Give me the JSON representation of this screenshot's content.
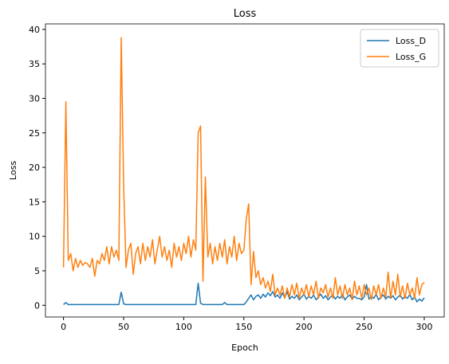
{
  "chart_data": {
    "type": "line",
    "title": "Loss",
    "xlabel": "Epoch",
    "ylabel": "Loss",
    "legend": "upper right",
    "xlim": [
      -15,
      316.6
    ],
    "ylim": [
      -1.7,
      40.8
    ],
    "xticks": [
      0,
      50,
      100,
      150,
      200,
      250,
      300
    ],
    "yticks": [
      0,
      5,
      10,
      15,
      20,
      25,
      30,
      35,
      40
    ],
    "x": [
      0,
      2,
      4,
      6,
      8,
      10,
      12,
      14,
      16,
      18,
      20,
      22,
      24,
      26,
      28,
      30,
      32,
      34,
      36,
      38,
      40,
      42,
      44,
      46,
      48,
      50,
      52,
      54,
      56,
      58,
      60,
      62,
      64,
      66,
      68,
      70,
      72,
      74,
      76,
      78,
      80,
      82,
      84,
      86,
      88,
      90,
      92,
      94,
      96,
      98,
      100,
      102,
      104,
      106,
      108,
      110,
      112,
      114,
      116,
      118,
      120,
      122,
      124,
      126,
      128,
      130,
      132,
      134,
      136,
      138,
      140,
      142,
      144,
      146,
      148,
      150,
      152,
      154,
      156,
      158,
      160,
      162,
      164,
      166,
      168,
      170,
      172,
      174,
      176,
      178,
      180,
      182,
      184,
      186,
      188,
      190,
      192,
      194,
      196,
      198,
      200,
      202,
      204,
      206,
      208,
      210,
      212,
      214,
      216,
      218,
      220,
      222,
      224,
      226,
      228,
      230,
      232,
      234,
      236,
      238,
      240,
      242,
      244,
      246,
      248,
      250,
      252,
      254,
      256,
      258,
      260,
      262,
      264,
      266,
      268,
      270,
      272,
      274,
      276,
      278,
      280,
      282,
      284,
      286,
      288,
      290,
      292,
      294,
      296,
      298,
      300
    ],
    "series": [
      {
        "name": "Loss_D",
        "color": "#1f77b4",
        "values": [
          0.1,
          0.4,
          0.1,
          0.1,
          0.1,
          0.1,
          0.1,
          0.1,
          0.1,
          0.1,
          0.1,
          0.1,
          0.1,
          0.1,
          0.1,
          0.1,
          0.1,
          0.1,
          0.1,
          0.1,
          0.1,
          0.1,
          0.1,
          0.1,
          1.9,
          0.2,
          0.1,
          0.1,
          0.1,
          0.1,
          0.1,
          0.1,
          0.1,
          0.1,
          0.1,
          0.1,
          0.1,
          0.1,
          0.1,
          0.1,
          0.1,
          0.1,
          0.1,
          0.1,
          0.1,
          0.1,
          0.1,
          0.1,
          0.1,
          0.1,
          0.1,
          0.1,
          0.1,
          0.1,
          0.1,
          0.1,
          3.2,
          0.3,
          0.1,
          0.1,
          0.1,
          0.1,
          0.1,
          0.1,
          0.1,
          0.1,
          0.1,
          0.4,
          0.1,
          0.1,
          0.1,
          0.1,
          0.1,
          0.1,
          0.1,
          0.1,
          0.5,
          1.0,
          1.5,
          0.8,
          1.3,
          1.5,
          1.0,
          1.6,
          1.2,
          1.8,
          1.4,
          2.0,
          1.2,
          1.5,
          1.0,
          1.8,
          1.1,
          2.0,
          0.9,
          1.3,
          1.0,
          1.5,
          0.8,
          1.2,
          1.6,
          0.9,
          1.3,
          1.0,
          1.5,
          0.8,
          1.2,
          1.6,
          1.0,
          1.4,
          0.8,
          1.2,
          1.5,
          0.9,
          1.3,
          1.0,
          1.6,
          0.8,
          1.2,
          1.5,
          0.9,
          1.3,
          1.0,
          1.0,
          0.8,
          1.2,
          3.0,
          0.9,
          1.3,
          1.0,
          1.6,
          0.8,
          1.2,
          1.5,
          0.9,
          1.3,
          1.0,
          1.4,
          0.8,
          1.2,
          1.5,
          0.9,
          1.3,
          1.0,
          1.6,
          0.8,
          1.2,
          0.5,
          0.9,
          0.6,
          1.1
        ]
      },
      {
        "name": "Loss_G",
        "color": "#ff7f0e",
        "values": [
          5.5,
          29.5,
          6.5,
          7.5,
          5.0,
          6.8,
          5.5,
          6.5,
          5.8,
          6.2,
          6.0,
          5.5,
          6.8,
          4.2,
          6.5,
          6.0,
          7.5,
          6.5,
          8.5,
          6.0,
          8.5,
          7.0,
          8.0,
          6.5,
          38.8,
          17.5,
          5.5,
          8.0,
          9.0,
          4.5,
          7.5,
          8.5,
          6.0,
          9.0,
          6.5,
          8.5,
          7.0,
          9.5,
          6.0,
          8.0,
          10.0,
          7.0,
          8.5,
          6.5,
          8.0,
          5.5,
          9.0,
          7.0,
          8.5,
          6.5,
          9.0,
          7.5,
          10.0,
          7.0,
          9.5,
          8.0,
          25.0,
          26.0,
          3.5,
          18.6,
          7.0,
          9.0,
          6.0,
          8.5,
          6.5,
          9.0,
          7.0,
          9.5,
          6.0,
          8.5,
          7.0,
          10.0,
          6.5,
          9.0,
          7.5,
          8.0,
          12.5,
          14.7,
          3.0,
          7.8,
          4.0,
          5.0,
          3.0,
          4.0,
          2.5,
          3.5,
          2.0,
          4.5,
          1.5,
          2.5,
          1.5,
          2.8,
          1.0,
          2.5,
          1.2,
          3.0,
          1.5,
          3.2,
          1.0,
          2.5,
          1.5,
          3.0,
          1.2,
          2.8,
          1.5,
          3.5,
          1.0,
          2.5,
          1.8,
          3.0,
          1.2,
          2.5,
          1.0,
          4.0,
          1.5,
          2.8,
          1.0,
          3.0,
          1.5,
          2.5,
          0.8,
          3.5,
          1.5,
          2.8,
          1.0,
          3.0,
          1.5,
          2.5,
          0.8,
          2.8,
          1.5,
          3.0,
          1.0,
          2.5,
          1.2,
          4.8,
          1.0,
          3.5,
          1.5,
          4.5,
          1.2,
          2.8,
          1.0,
          3.2,
          1.5,
          2.5,
          1.0,
          4.0,
          1.5,
          3.0,
          3.3
        ]
      }
    ]
  }
}
